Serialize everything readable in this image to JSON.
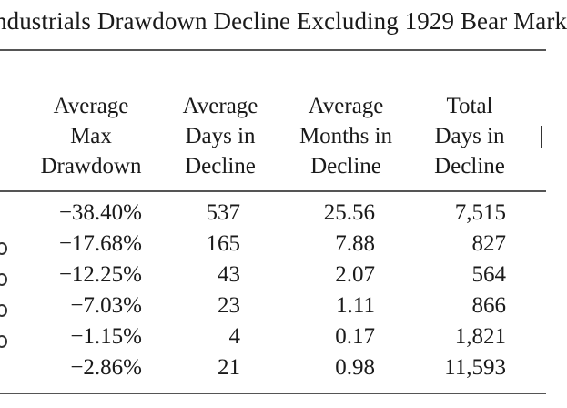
{
  "title": "ndustrials Drawdown Decline Excluding 1929 Bear Mark",
  "headers": [
    [
      "Average",
      "Max",
      "Drawdown"
    ],
    [
      "Average",
      "Days in",
      "Decline"
    ],
    [
      "Average",
      "Months in",
      "Decline"
    ],
    [
      "Total",
      "Days in",
      "Decline"
    ]
  ],
  "rows": [
    [
      "−38.40%",
      "537",
      "25.56",
      "7,515"
    ],
    [
      "−17.68%",
      "165",
      "7.88",
      "827"
    ],
    [
      "−12.25%",
      "43",
      "2.07",
      "564"
    ],
    [
      "−7.03%",
      "23",
      "1.11",
      "866"
    ],
    [
      "−1.15%",
      "4",
      "0.17",
      "1,821"
    ],
    [
      "−2.86%",
      "21",
      "0.98",
      "11,593"
    ]
  ]
}
